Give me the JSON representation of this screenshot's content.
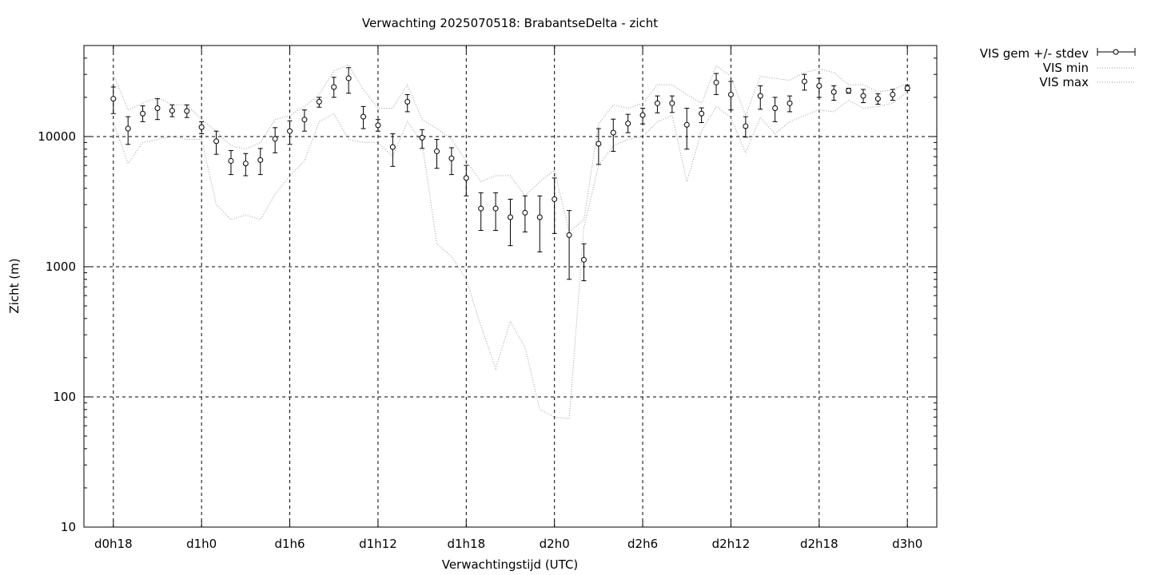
{
  "chart_data": {
    "type": "line",
    "title": "Verwachting 2025070518: BrabantseDelta - zicht",
    "xlabel": "Verwachtingstijd (UTC)",
    "ylabel": "Zicht (m)",
    "y_scale": "log",
    "ylim": [
      10,
      50000
    ],
    "xlim_hours": [
      -2,
      56
    ],
    "yticks": [
      {
        "value": 10,
        "label": "10"
      },
      {
        "value": 100,
        "label": "100"
      },
      {
        "value": 1000,
        "label": "1000"
      },
      {
        "value": 10000,
        "label": "10000"
      }
    ],
    "xticks": [
      {
        "hour": 0,
        "label": "d0h18"
      },
      {
        "hour": 6,
        "label": "d1h0"
      },
      {
        "hour": 12,
        "label": "d1h6"
      },
      {
        "hour": 18,
        "label": "d1h12"
      },
      {
        "hour": 24,
        "label": "d1h18"
      },
      {
        "hour": 30,
        "label": "d2h0"
      },
      {
        "hour": 36,
        "label": "d2h6"
      },
      {
        "hour": 42,
        "label": "d2h12"
      },
      {
        "hour": 48,
        "label": "d2h18"
      },
      {
        "hour": 54,
        "label": "d3h0"
      }
    ],
    "grid": true,
    "legend_position": "outside-top-right",
    "legend": [
      "VIS gem +/- stdev",
      "VIS min",
      "VIS max"
    ],
    "x_hours": [
      0,
      1,
      2,
      3,
      4,
      5,
      6,
      7,
      8,
      9,
      10,
      11,
      12,
      13,
      14,
      15,
      16,
      17,
      18,
      19,
      20,
      21,
      22,
      23,
      24,
      25,
      26,
      27,
      28,
      29,
      30,
      31,
      32,
      33,
      34,
      35,
      36,
      37,
      38,
      39,
      40,
      41,
      42,
      43,
      44,
      45,
      46,
      47,
      48,
      49,
      50,
      51,
      52,
      53,
      54
    ],
    "series": [
      {
        "name": "VIS gem +/- stdev",
        "style": "points-errorbars",
        "values": [
          19500,
          11500,
          15000,
          16500,
          15800,
          15700,
          11800,
          9200,
          6500,
          6200,
          6600,
          9600,
          11000,
          13500,
          18500,
          24000,
          28000,
          14200,
          12200,
          8300,
          18500,
          9800,
          7700,
          6800,
          4800,
          2800,
          2800,
          2400,
          2600,
          2400,
          3300,
          1750,
          1130,
          8800,
          10700,
          12600,
          14600,
          18000,
          18000,
          12300,
          15000,
          26000,
          21000,
          12000,
          20500,
          16500,
          18000,
          26500,
          24500,
          22000,
          22500,
          20500,
          19500,
          21000,
          23500
        ],
        "err_low": [
          15000,
          8700,
          13000,
          13500,
          14200,
          14000,
          10500,
          7300,
          5100,
          5000,
          5100,
          7500,
          8700,
          11000,
          16800,
          20000,
          21500,
          11500,
          11000,
          5900,
          15500,
          8100,
          5700,
          5100,
          3500,
          1900,
          1900,
          1450,
          1850,
          1300,
          1800,
          800,
          780,
          6100,
          7700,
          10700,
          12500,
          15200,
          15300,
          8000,
          12800,
          21000,
          16000,
          9900,
          16200,
          13000,
          15500,
          22700,
          20000,
          19000,
          21500,
          18200,
          17700,
          19000,
          22500
        ],
        "err_high": [
          24000,
          14200,
          17200,
          19500,
          17500,
          17500,
          13000,
          11000,
          7800,
          7400,
          8100,
          11700,
          13200,
          16000,
          20000,
          28500,
          33800,
          17000,
          13500,
          10500,
          21000,
          11300,
          9500,
          8200,
          6000,
          3700,
          3700,
          3300,
          3500,
          3500,
          4800,
          2700,
          1500,
          11500,
          13600,
          14800,
          16500,
          20500,
          20500,
          16500,
          16600,
          30500,
          26500,
          14200,
          24500,
          20000,
          20500,
          30000,
          28000,
          24500,
          23500,
          23000,
          21300,
          23000,
          24700
        ]
      },
      {
        "name": "VIS min",
        "style": "dotted",
        "values": [
          13000,
          6200,
          9000,
          9500,
          10000,
          9500,
          9500,
          3000,
          2300,
          2500,
          2300,
          3600,
          5000,
          6500,
          13000,
          15000,
          9500,
          9000,
          9000,
          7000,
          13000,
          9000,
          1500,
          1200,
          800,
          350,
          165,
          380,
          240,
          80,
          70,
          68,
          2000,
          6000,
          8500,
          9500,
          10000,
          13000,
          14500,
          4500,
          11000,
          17000,
          14000,
          7500,
          14000,
          10500,
          13000,
          14500,
          16000,
          15500,
          19000,
          16500,
          17000,
          18000,
          22000
        ]
      },
      {
        "name": "VIS max",
        "style": "dotted",
        "values": [
          30000,
          16000,
          18000,
          20000,
          17500,
          17500,
          13500,
          11000,
          8500,
          8000,
          9000,
          13500,
          14500,
          17000,
          21000,
          32000,
          35500,
          23000,
          16500,
          16500,
          25000,
          13500,
          11500,
          9500,
          6500,
          4500,
          5000,
          5000,
          3500,
          4500,
          5500,
          1850,
          2300,
          12500,
          17500,
          16500,
          18000,
          25000,
          25000,
          21000,
          18000,
          35000,
          29000,
          14500,
          29000,
          28000,
          27000,
          31000,
          33000,
          31000,
          25000,
          25000,
          22000,
          23000,
          25500
        ]
      }
    ]
  }
}
